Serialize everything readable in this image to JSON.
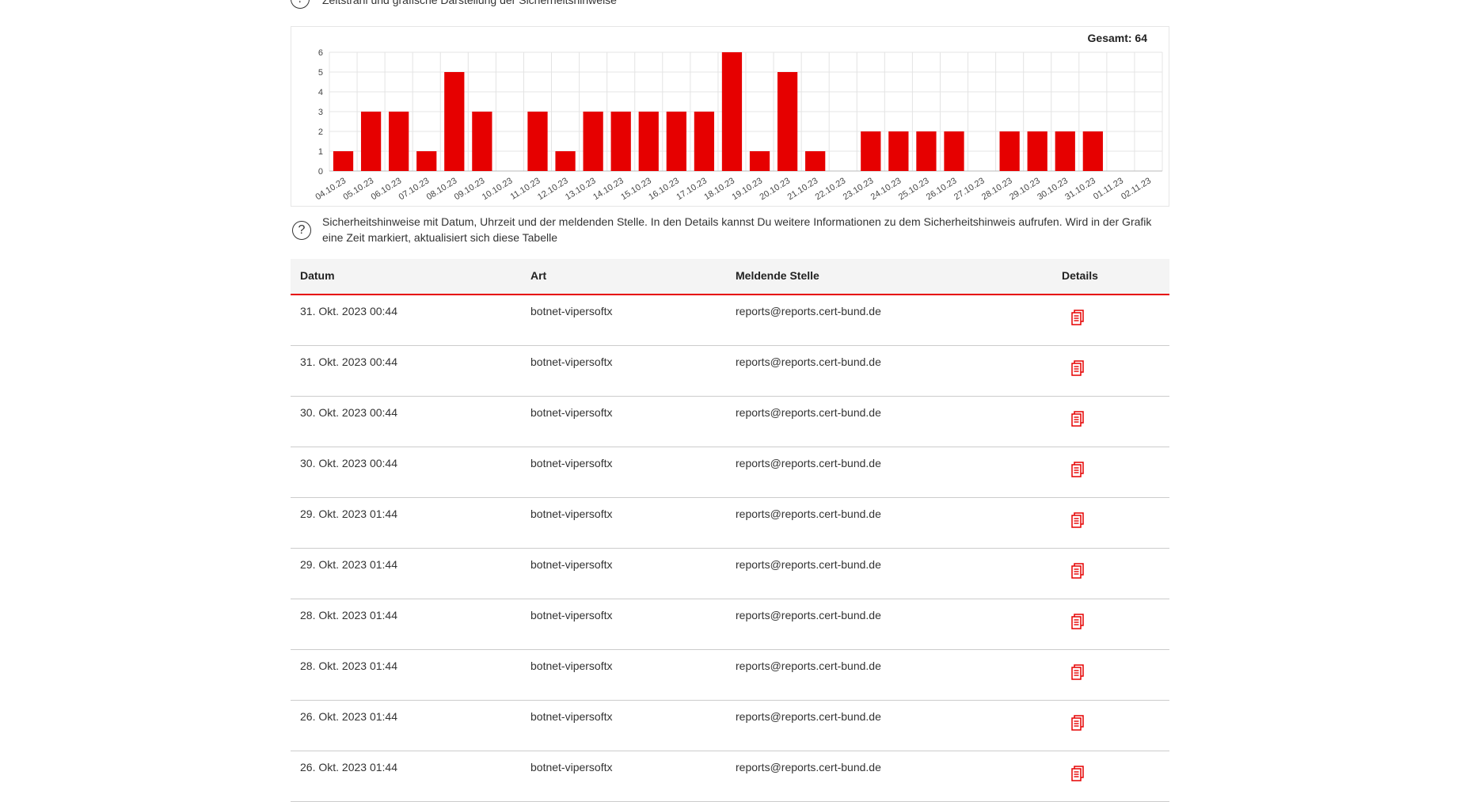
{
  "top_help": {
    "icon": "help-icon",
    "text": "Zeitstrahl und grafische Darstellung der Sicherheitshinweise"
  },
  "chart_total": "Gesamt: 64",
  "chart_data": {
    "type": "bar",
    "categories": [
      "04.10.23",
      "05.10.23",
      "06.10.23",
      "07.10.23",
      "08.10.23",
      "09.10.23",
      "10.10.23",
      "11.10.23",
      "12.10.23",
      "13.10.23",
      "14.10.23",
      "15.10.23",
      "16.10.23",
      "17.10.23",
      "18.10.23",
      "19.10.23",
      "20.10.23",
      "21.10.23",
      "22.10.23",
      "23.10.23",
      "24.10.23",
      "25.10.23",
      "26.10.23",
      "27.10.23",
      "28.10.23",
      "29.10.23",
      "30.10.23",
      "31.10.23",
      "01.11.23",
      "02.11.23"
    ],
    "values": [
      1,
      3,
      3,
      1,
      5,
      3,
      0,
      3,
      1,
      3,
      3,
      3,
      3,
      3,
      6,
      1,
      5,
      1,
      0,
      2,
      2,
      2,
      2,
      0,
      2,
      2,
      2,
      2,
      0,
      0
    ],
    "ylim": [
      0,
      6
    ],
    "yticks": [
      0,
      1,
      2,
      3,
      4,
      5,
      6
    ],
    "grid": true,
    "bar_color": "#e60000"
  },
  "table_help": {
    "icon": "help-icon",
    "text": "Sicherheitshinweise mit Datum, Uhrzeit und der meldenden Stelle. In den Details kannst Du weitere Informationen zu dem Sicherheitshinweis aufrufen. Wird in der Grafik eine Zeit markiert, aktualisiert sich diese Tabelle"
  },
  "table": {
    "headers": {
      "datum": "Datum",
      "art": "Art",
      "stelle": "Meldende Stelle",
      "details": "Details"
    },
    "accent": "#e60000",
    "rows": [
      {
        "datum": "31. Okt. 2023 00:44",
        "art": "botnet-vipersoftx",
        "stelle": "reports@reports.cert-bund.de",
        "icon": "document-icon"
      },
      {
        "datum": "31. Okt. 2023 00:44",
        "art": "botnet-vipersoftx",
        "stelle": "reports@reports.cert-bund.de",
        "icon": "document-icon"
      },
      {
        "datum": "30. Okt. 2023 00:44",
        "art": "botnet-vipersoftx",
        "stelle": "reports@reports.cert-bund.de",
        "icon": "document-icon"
      },
      {
        "datum": "30. Okt. 2023 00:44",
        "art": "botnet-vipersoftx",
        "stelle": "reports@reports.cert-bund.de",
        "icon": "document-icon"
      },
      {
        "datum": "29. Okt. 2023 01:44",
        "art": "botnet-vipersoftx",
        "stelle": "reports@reports.cert-bund.de",
        "icon": "document-icon"
      },
      {
        "datum": "29. Okt. 2023 01:44",
        "art": "botnet-vipersoftx",
        "stelle": "reports@reports.cert-bund.de",
        "icon": "document-icon"
      },
      {
        "datum": "28. Okt. 2023 01:44",
        "art": "botnet-vipersoftx",
        "stelle": "reports@reports.cert-bund.de",
        "icon": "document-icon"
      },
      {
        "datum": "28. Okt. 2023 01:44",
        "art": "botnet-vipersoftx",
        "stelle": "reports@reports.cert-bund.de",
        "icon": "document-icon"
      },
      {
        "datum": "26. Okt. 2023 01:44",
        "art": "botnet-vipersoftx",
        "stelle": "reports@reports.cert-bund.de",
        "icon": "document-icon"
      },
      {
        "datum": "26. Okt. 2023 01:44",
        "art": "botnet-vipersoftx",
        "stelle": "reports@reports.cert-bund.de",
        "icon": "document-icon"
      }
    ]
  }
}
